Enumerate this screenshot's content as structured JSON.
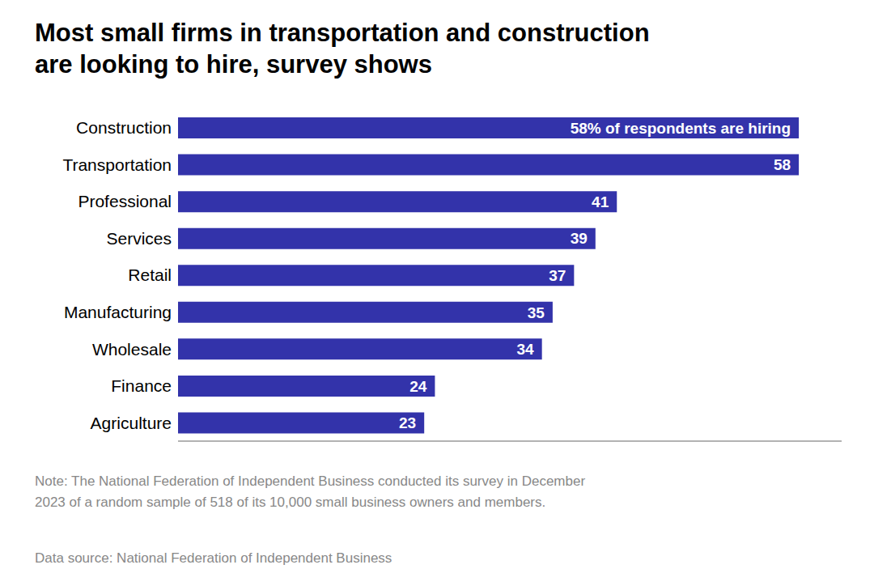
{
  "chart_data": {
    "type": "bar",
    "orientation": "horizontal",
    "title": "Most small firms in transportation and construction\nare looking to hire, survey shows",
    "categories": [
      "Construction",
      "Transportation",
      "Professional",
      "Services",
      "Retail",
      "Manufacturing",
      "Wholesale",
      "Finance",
      "Agriculture"
    ],
    "values": [
      58,
      58,
      41,
      39,
      37,
      35,
      34,
      24,
      23
    ],
    "value_labels": [
      "58% of respondents are hiring",
      "58",
      "41",
      "39",
      "37",
      "35",
      "34",
      "24",
      "23"
    ],
    "data_labels": true,
    "color": "#3333aa",
    "xlim": [
      0,
      62
    ],
    "tick_labels": "y",
    "grid": false,
    "annotations": [
      "Note: The National Federation of Independent Business conducted its survey in December\n2023 of a random sample of 518 of its 10,000 small business owners and members.",
      "Data source: National Federation of Independent Business"
    ]
  }
}
